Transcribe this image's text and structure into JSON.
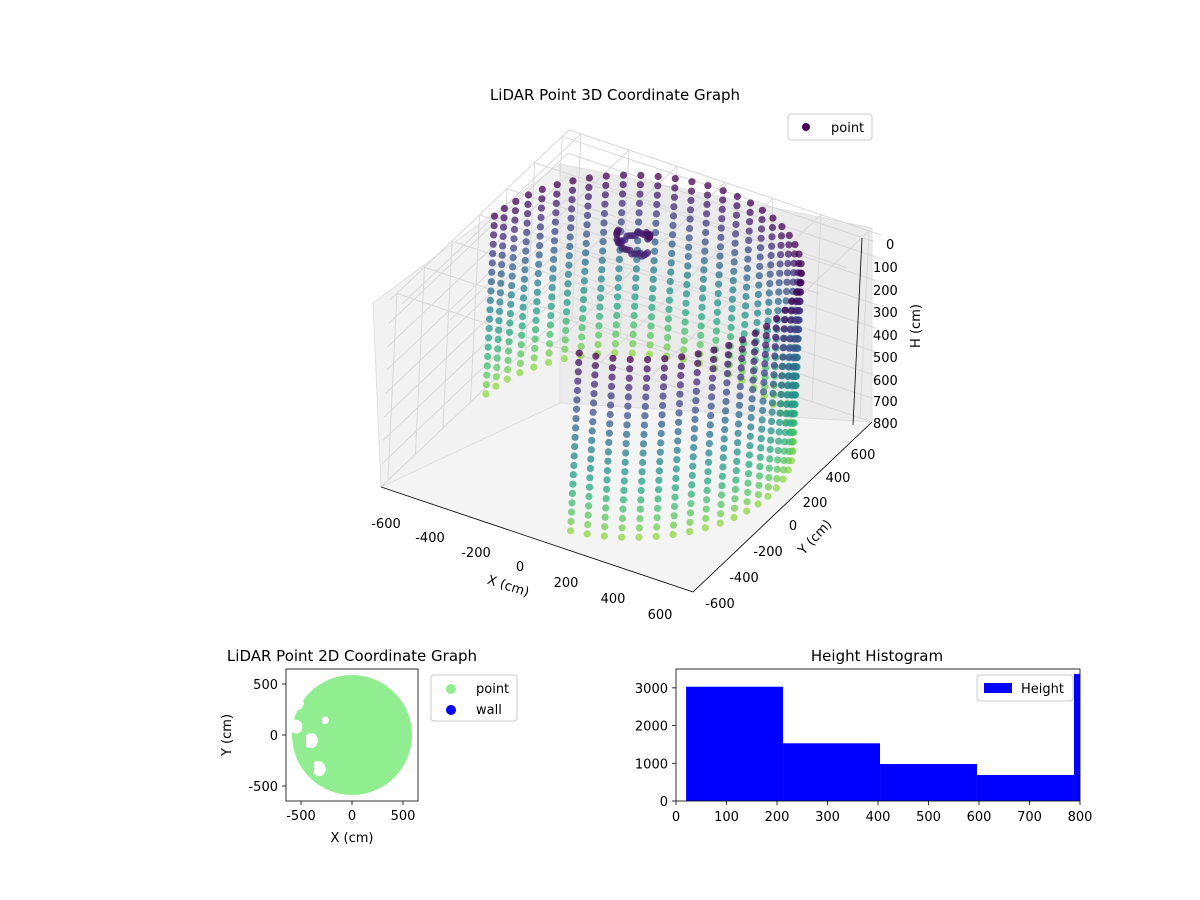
{
  "chart_data": [
    {
      "type": "scatter3d",
      "title": "LiDAR Point 3D Coordinate Graph",
      "xlabel": "X (cm)",
      "ylabel": "Y (cm)",
      "zlabel": "H (cm)",
      "xlim": [
        -650,
        650
      ],
      "ylim": [
        -650,
        650
      ],
      "zlim": [
        0,
        800
      ],
      "z_inverted": true,
      "xticks": [
        "-600",
        "-400",
        "-200",
        "0",
        "200",
        "400",
        "600"
      ],
      "yticks": [
        "-600",
        "-400",
        "-200",
        "0",
        "200",
        "400",
        "600"
      ],
      "zticks": [
        "0",
        "100",
        "200",
        "300",
        "400",
        "500",
        "600",
        "700",
        "800"
      ],
      "legend": {
        "entries": [
          "point"
        ],
        "placement": "top-right"
      },
      "colormap": "viridis",
      "grid": true,
      "series": [
        {
          "name": "point",
          "shape": "cylindrical wall of points, radius ~600 cm, heights 0–800 cm, open on the negative-x/negative-y side",
          "ring_radius": 600,
          "height_range": [
            0,
            800
          ],
          "sample_angles_deg": [
            -70,
            -50,
            -30,
            -10,
            10,
            30,
            50,
            70,
            90,
            110,
            130,
            150,
            170
          ],
          "cluster_near_top": {
            "x": -150,
            "y": 250,
            "h": 50
          }
        }
      ]
    },
    {
      "type": "scatter",
      "title": "LiDAR Point 2D Coordinate Graph",
      "xlabel": "X (cm)",
      "ylabel": "Y (cm)",
      "xlim": [
        -650,
        650
      ],
      "ylim": [
        -650,
        650
      ],
      "xticks": [
        "-500",
        "0",
        "500"
      ],
      "yticks": [
        "500",
        "0",
        "-500"
      ],
      "legend": {
        "entries": [
          "point",
          "wall"
        ],
        "placement": "outside-right"
      },
      "colors": {
        "point": "#90ee90",
        "wall": "#0000ff"
      },
      "series": [
        {
          "name": "point",
          "shape": "filled disc of radius ~600 cm with gaps on the left side"
        },
        {
          "name": "wall",
          "points": []
        }
      ]
    },
    {
      "type": "bar",
      "title": "Height Histogram",
      "xlim": [
        0,
        800
      ],
      "ylim": [
        0,
        3500
      ],
      "xticks": [
        "0",
        "100",
        "200",
        "300",
        "400",
        "500",
        "600",
        "700",
        "800"
      ],
      "yticks": [
        "0",
        "1000",
        "2000",
        "3000"
      ],
      "legend": {
        "entries": [
          "Height"
        ],
        "placement": "top-right"
      },
      "color": "#0000ff",
      "series": [
        {
          "name": "Height",
          "bins": [
            [
              20,
              212
            ],
            [
              212,
              404
            ],
            [
              404,
              596
            ],
            [
              596,
              788
            ],
            [
              788,
              800
            ]
          ],
          "values": [
            3030,
            1530,
            980,
            690,
            3370
          ]
        }
      ]
    }
  ]
}
